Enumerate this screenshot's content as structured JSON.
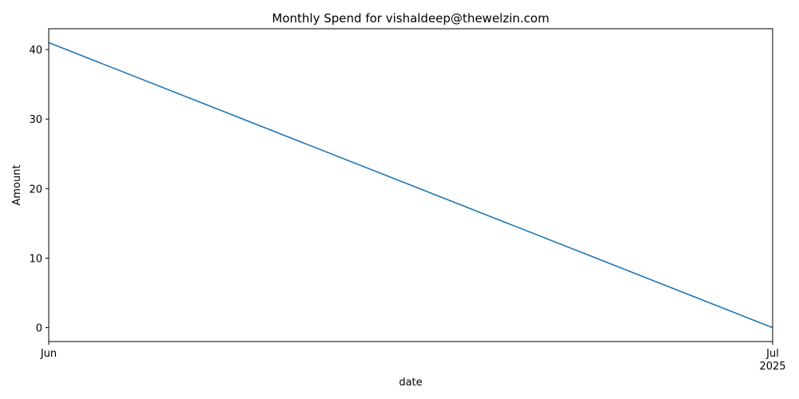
{
  "chart_data": {
    "type": "line",
    "title": "Monthly Spend for vishaldeep@thewelzin.com",
    "xlabel": "date",
    "ylabel": "Amount",
    "x": [
      "2025-06",
      "2025-07"
    ],
    "series": [
      {
        "values": [
          41,
          0
        ],
        "color": "#1f77b4"
      }
    ],
    "ylim": [
      -2,
      43
    ],
    "y_ticks": [
      0,
      10,
      20,
      30,
      40
    ],
    "x_ticks": [
      {
        "x": "2025-06",
        "label": "Jun",
        "sublabel": ""
      },
      {
        "x": "2025-07",
        "label": "Jul",
        "sublabel": "2025"
      }
    ],
    "grid": false,
    "legend": "none"
  }
}
